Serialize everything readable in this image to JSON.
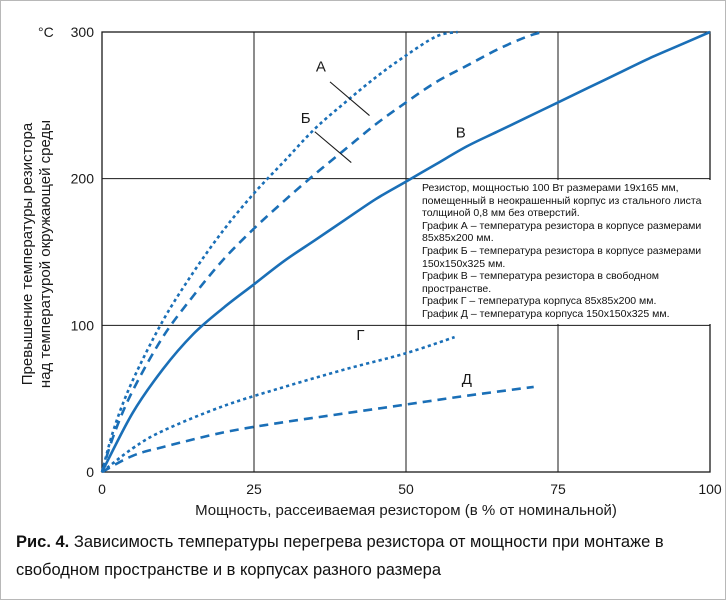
{
  "chart_data": {
    "type": "line",
    "title": "",
    "xlabel": "Мощность, рассеиваемая резистором (в % от номинальной)",
    "ylabel_line1": "Превышение температуры резистора",
    "ylabel_line2": "над температурой окружающей среды",
    "yunit": "°C",
    "xlim": [
      0,
      100
    ],
    "ylim": [
      0,
      300
    ],
    "xticks": [
      "0",
      "25",
      "50",
      "75",
      "100"
    ],
    "yticks": [
      "0",
      "100",
      "200",
      "300"
    ],
    "grid": true,
    "series": [
      {
        "name": "А",
        "style": "dotted",
        "x": [
          0,
          2,
          5,
          10,
          15,
          20,
          25,
          30,
          35,
          40,
          45,
          50,
          55,
          58.5
        ],
        "y": [
          0,
          30,
          62,
          103,
          136,
          165,
          190,
          212,
          234,
          252,
          269,
          284,
          297,
          300
        ]
      },
      {
        "name": "Б",
        "style": "dashed",
        "x": [
          0,
          2,
          5,
          10,
          15,
          20,
          25,
          30,
          35,
          40,
          45,
          50,
          55,
          60,
          65,
          70,
          72.5
        ],
        "y": [
          0,
          26,
          55,
          92,
          120,
          145,
          166,
          185,
          203,
          220,
          237,
          252,
          266,
          277,
          288,
          297,
          300
        ]
      },
      {
        "name": "В",
        "style": "solid",
        "x": [
          0,
          5,
          10,
          15,
          20,
          25,
          30,
          35,
          40,
          45,
          50,
          55,
          60,
          65,
          70,
          75,
          80,
          85,
          90,
          95,
          100
        ],
        "y": [
          0,
          40,
          70,
          94,
          112,
          128,
          144,
          158,
          172,
          186,
          198,
          210,
          222,
          232,
          242,
          252,
          262,
          272,
          282,
          291,
          300
        ]
      },
      {
        "name": "Г",
        "style": "dotted",
        "x": [
          0,
          5,
          10,
          20,
          30,
          40,
          50,
          58
        ],
        "y": [
          0,
          16,
          28,
          45,
          58,
          70,
          81,
          92
        ]
      },
      {
        "name": "Д",
        "style": "dashed",
        "x": [
          0,
          5,
          10,
          20,
          30,
          40,
          50,
          60,
          71
        ],
        "y": [
          0,
          11,
          17,
          27,
          34,
          40,
          46,
          52,
          58
        ]
      }
    ],
    "series_label_positions_data": [
      {
        "name": "А",
        "x": 36,
        "y": 273
      },
      {
        "name": "Б",
        "x": 33.5,
        "y": 238
      },
      {
        "name": "В",
        "x": 59,
        "y": 228
      },
      {
        "name": "Г",
        "x": 42.5,
        "y": 90
      },
      {
        "name": "Д",
        "x": 60,
        "y": 60
      }
    ],
    "color": "#1a6fb7",
    "grid_color": "#1a1a1a"
  },
  "note": {
    "lines": [
      "Резистор, мощностью 100 Вт размерами 19х165 мм, помещенный в неокрашенный корпус из стального листа толщиной 0,8 мм без отверстий.",
      "График А – температура резистора в корпусе размерами 85х85х200 мм.",
      "График Б – температура резистора в корпусе размерами 150х150х325 мм.",
      "График В – температура резистора в свободном пространстве.",
      "График Г – температура корпуса 85х85х200 мм.",
      "График Д – температура корпуса 150х150х325 мм."
    ]
  },
  "caption": {
    "label": "Рис. 4.",
    "text": "Зависимость температуры перегрева резистора от мощности при монтаже в свободном пространстве и в корпусах разного размера"
  }
}
